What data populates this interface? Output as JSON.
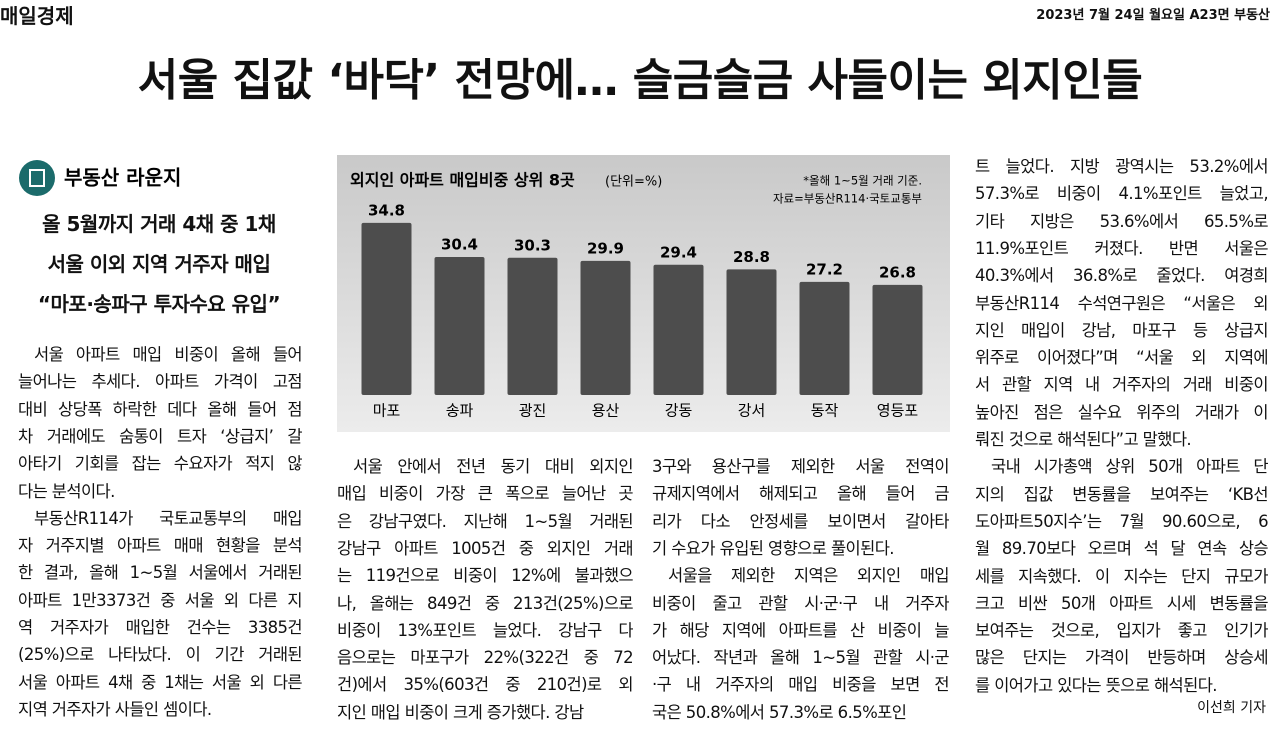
{
  "masthead": {
    "paper": "매일경제",
    "date": "2023년 7월 24일 월요일 A23면 부동산"
  },
  "headline": "서울 집값 ‘바닥’ 전망에… 슬금슬금 사들이는 외지인들",
  "section": "부동산 라운지",
  "subheads": [
    "올 5월까지 거래 4채 중 1채",
    "서울 이외 지역 거주자 매입",
    "“마포·송파구 투자수요 유입”"
  ],
  "columns": [
    [
      [
        "서울 아파트 매입 비중이 올해 들어",
        "늘어나는 추세다. 아파트 가격이 고점",
        "대비 상당폭 하락한 데다 올해 들어 점",
        "차 거래에도 숨통이 트자 ‘상급지’ 갈",
        "아타기 기회를 잡는 수요자가 적지 않",
        "다는 분석이다."
      ],
      [
        "부동산R114가 국토교통부의 매입",
        "자 거주지별 아파트 매매 현황을 분석",
        "한 결과, 올해 1~5월 서울에서 거래된",
        "아파트 1만3373건 중 서울 외 다른 지",
        "역 거주자가 매입한 건수는 3385건",
        "(25%)으로 나타났다. 이 기간 거래된",
        "서울 아파트 4채 중 1채는 서울 외 다른",
        "지역 거주자가 사들인 셈이다."
      ]
    ],
    [
      [
        "서울 안에서 전년 동기 대비 외지인",
        "매입 비중이 가장 큰 폭으로 늘어난 곳",
        "은 강남구였다. 지난해 1~5월 거래된",
        "강남구 아파트 1005건 중 외지인 거래",
        "는 119건으로 비중이 12%에 불과했으",
        "나, 올해는 849건 중 213건(25%)으로",
        "비중이 13%포인트 늘었다. 강남구 다",
        "음으로는 마포구가 22%(322건 중 72",
        "건)에서 35%(603건 중 210건)로 외",
        "지인 매입 비중이 크게 증가했다. 강남"
      ]
    ],
    [
      [
        "3구와 용산구를 제외한 서울 전역이",
        "규제지역에서 해제되고 올해 들어 금",
        "리가 다소 안정세를 보이면서 갈아타",
        "기 수요가 유입된 영향으로 풀이된다."
      ],
      [
        "서울을 제외한 지역은 외지인 매입",
        "비중이 줄고 관할 시·군·구 내 거주자",
        "가 해당 지역에 아파트를 산 비중이 늘",
        "어났다. 작년과 올해 1~5월 관할 시·군",
        "·구 내 거주자의 매입 비중을 보면 전",
        "국은 50.8%에서 57.3%로 6.5%포인"
      ]
    ],
    [
      [
        "트 늘었다. 지방 광역시는 53.2%에서",
        "57.3%로 비중이 4.1%포인트 늘었고,",
        "기타 지방은 53.6%에서 65.5%로",
        "11.9%포인트 커졌다. 반면 서울은",
        "40.3%에서 36.8%로 줄었다. 여경희",
        "부동산R114 수석연구원은 “서울은 외",
        "지인 매입이 강남, 마포구 등 상급지",
        "위주로 이어졌다”며 “서울 외 지역에",
        "서 관할 지역 내 거주자의 거래 비중이",
        "높아진 점은 실수요 위주의 거래가 이",
        "뤄진 것으로 해석된다”고 말했다."
      ],
      [
        "국내 시가총액 상위 50개 아파트 단",
        "지의 집값 변동률을 보여주는 ‘KB선",
        "도아파트50지수’는 7월 90.60으로, 6",
        "월 89.70보다 오르며 석 달 연속 상승",
        "세를 지속했다. 이 지수는 단지 규모가",
        "크고 비싼 50개 아파트 시세 변동률을",
        "보여주는 것으로, 입지가 좋고 인기가",
        "많은 단지는 가격이 반등하며 상승세",
        "를 이어가고 있다는 뜻으로 해석된다."
      ]
    ]
  ],
  "byline": "이선희 기자",
  "chart_data": {
    "type": "bar",
    "title": "외지인 아파트 매입비중 상위 8곳",
    "unit": "(단위=%)",
    "notes": [
      "*올해 1~5월 거래 기준.",
      "자료=부동산R114·국토교통부"
    ],
    "categories": [
      "마포",
      "송파",
      "광진",
      "용산",
      "강동",
      "강서",
      "동작",
      "영등포"
    ],
    "values": [
      34.8,
      30.4,
      30.3,
      29.9,
      29.4,
      28.8,
      27.2,
      26.8
    ],
    "color": "#4d4d4d",
    "ylim": [
      12.6,
      38.4
    ]
  }
}
